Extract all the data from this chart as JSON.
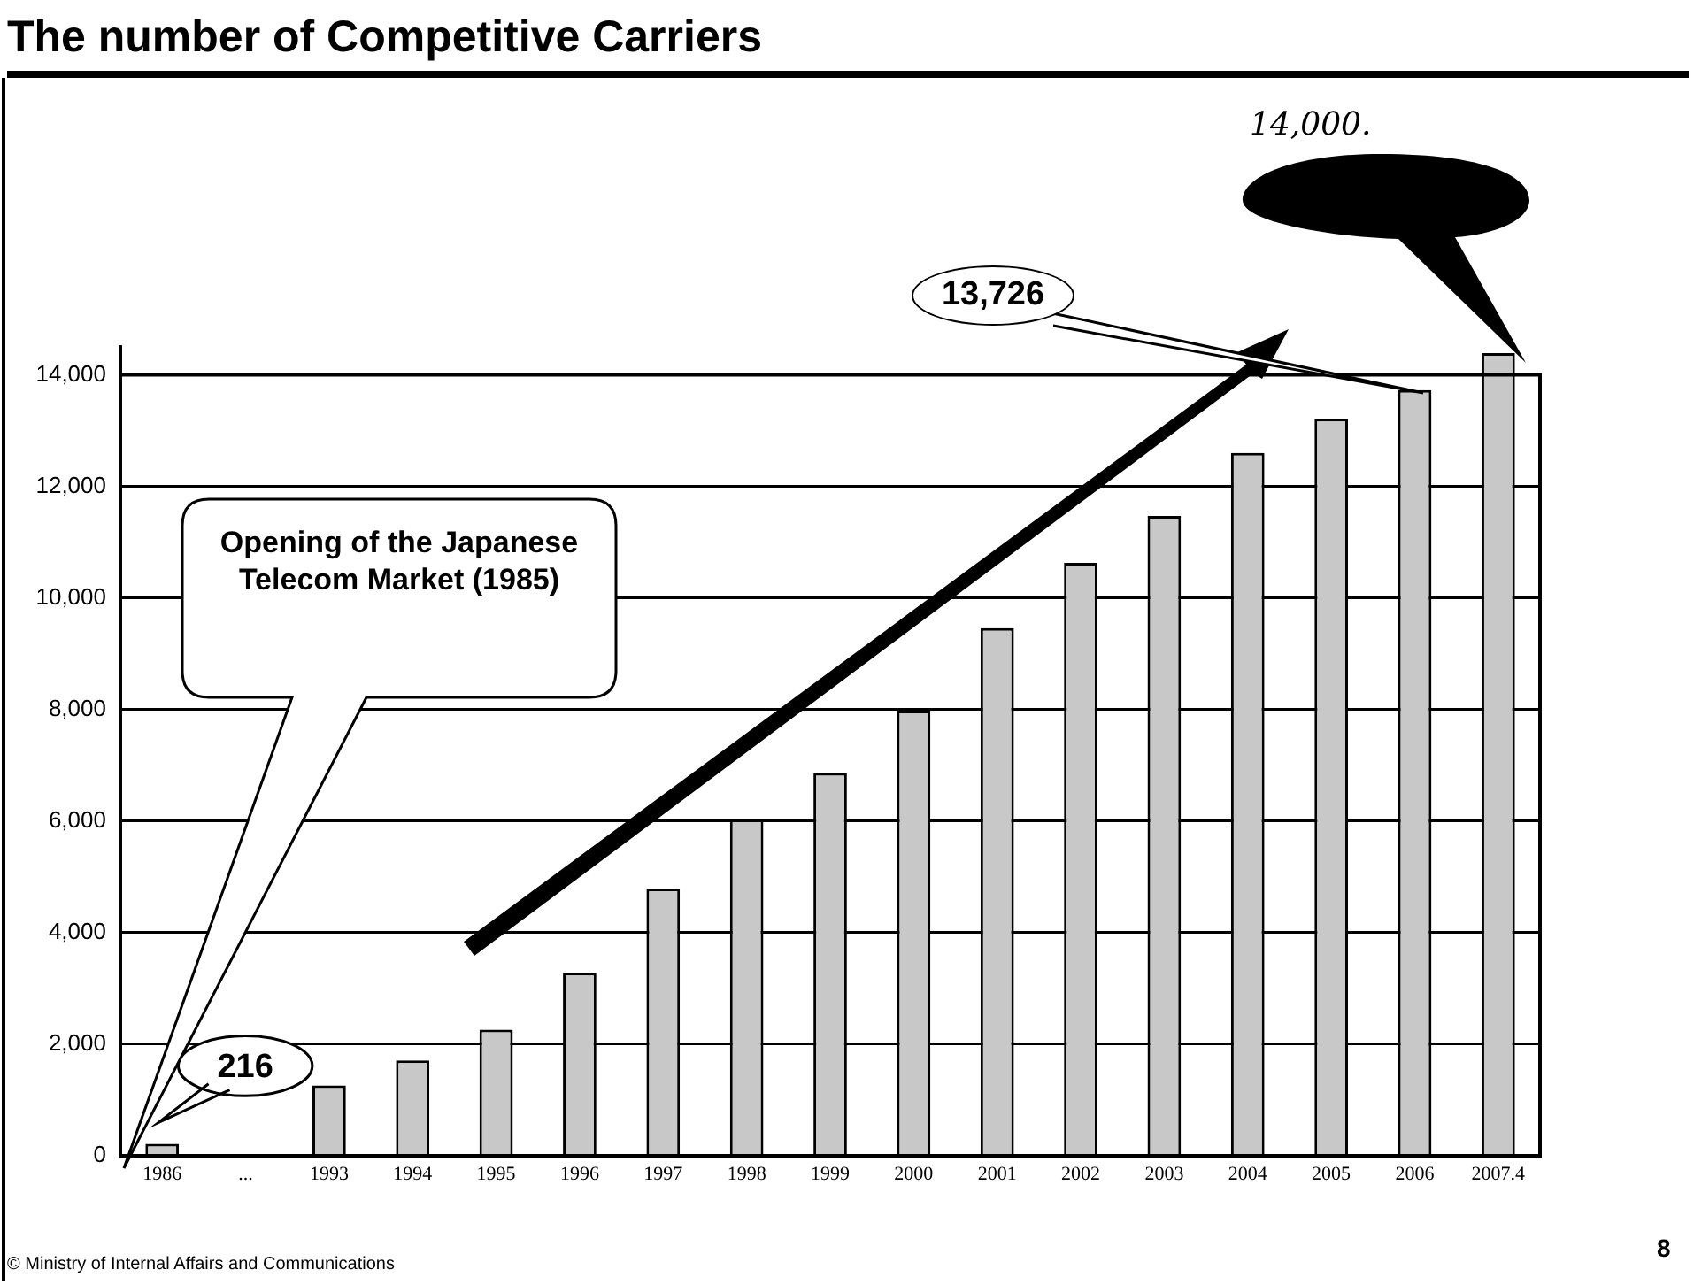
{
  "chart_data": {
    "type": "bar",
    "title": "The number of Competitive Carriers",
    "categories": [
      "1986",
      "...",
      "1993",
      "1994",
      "1995",
      "1996",
      "1997",
      "1998",
      "1999",
      "2000",
      "2001",
      "2002",
      "2003",
      "2004",
      "2005",
      "2006",
      "2007.4"
    ],
    "values": [
      216,
      null,
      1260,
      1710,
      2260,
      3280,
      4790,
      6030,
      6860,
      7980,
      9460,
      10630,
      11470,
      12600,
      13210,
      13726,
      14390
    ],
    "color": "#c8c8c8",
    "ylim": [
      0,
      14500
    ],
    "yticks": [
      0,
      {
        "value": 2000,
        "label": "2,000"
      },
      {
        "value": 4000,
        "label": "4,000"
      },
      {
        "value": 6000,
        "label": "6,000"
      },
      {
        "value": 8000,
        "label": "8,000"
      },
      {
        "value": 10000,
        "label": "10,000"
      },
      {
        "value": 12000,
        "label": "12,000"
      },
      {
        "value": 14000,
        "label": "14,000"
      }
    ],
    "grid": "y",
    "legend": false,
    "annotations": [
      "Opening of the Japanese Telecom Market (1985)",
      {
        "text": "216",
        "x": "1986",
        "y": 216
      },
      "13,726",
      "14,000.",
      "© Ministry of Internal Affairs and Communications",
      "8"
    ]
  }
}
